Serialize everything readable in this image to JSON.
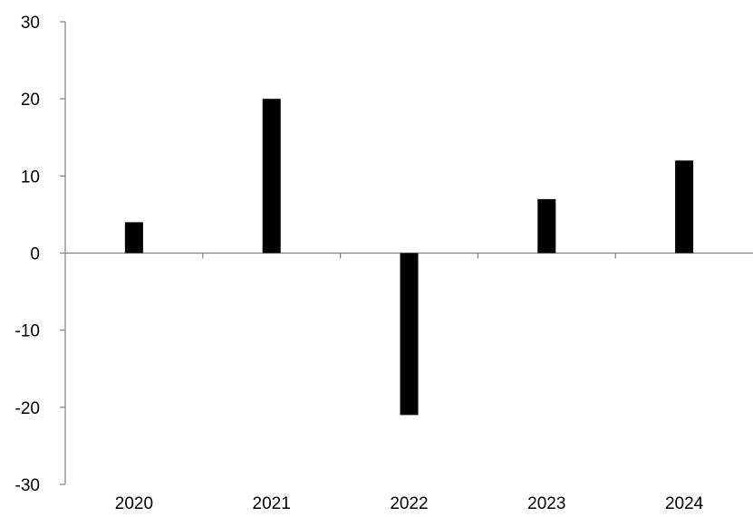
{
  "chart_data": {
    "type": "bar",
    "title": "",
    "xlabel": "",
    "ylabel": "",
    "categories": [
      "2020",
      "2021",
      "2022",
      "2023",
      "2024"
    ],
    "values": [
      4,
      20,
      -21,
      7,
      12
    ],
    "ylim": [
      -30,
      30
    ],
    "yticks": [
      "30",
      "20",
      "10",
      "0",
      "-10",
      "-20",
      "-30"
    ],
    "grid": false,
    "legend": "none",
    "bar_color": "#000000",
    "axis_color": "#808080"
  }
}
